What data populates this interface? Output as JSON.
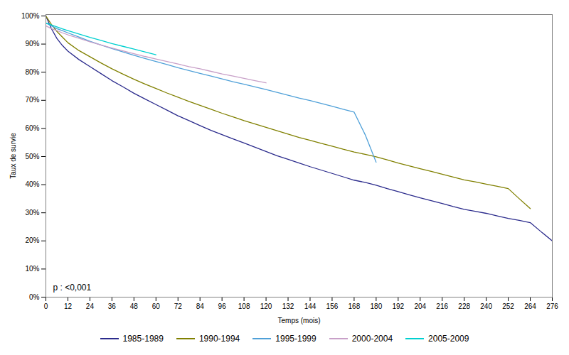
{
  "chart_data": {
    "type": "line",
    "xlabel": "Temps (mois)",
    "ylabel": "Taux de survie",
    "annotations": [
      "p : <0,001"
    ],
    "xlim": [
      0,
      276
    ],
    "ylim": [
      0,
      1.005
    ],
    "xticks": [
      0,
      12,
      24,
      36,
      48,
      60,
      72,
      84,
      96,
      108,
      120,
      132,
      144,
      156,
      168,
      180,
      192,
      204,
      216,
      228,
      240,
      252,
      264,
      276
    ],
    "yticks": [
      {
        "value": 0.0,
        "label": "0%"
      },
      {
        "value": 0.1,
        "label": "10%"
      },
      {
        "value": 0.2,
        "label": "20%"
      },
      {
        "value": 0.3,
        "label": "30%"
      },
      {
        "value": 0.4,
        "label": "40%"
      },
      {
        "value": 0.5,
        "label": "50%"
      },
      {
        "value": 0.6,
        "label": "60%"
      },
      {
        "value": 0.7,
        "label": "70%"
      },
      {
        "value": 0.8,
        "label": "80%"
      },
      {
        "value": 0.9,
        "label": "90%"
      },
      {
        "value": 1.0,
        "label": "100%"
      }
    ],
    "grid": false,
    "legend": "bottom",
    "series": [
      {
        "name": "1985-1989",
        "color": "#2B2B8C",
        "x": [
          0,
          3,
          6,
          9,
          12,
          18,
          24,
          30,
          36,
          42,
          48,
          54,
          60,
          66,
          72,
          78,
          84,
          90,
          96,
          102,
          108,
          114,
          120,
          126,
          132,
          138,
          144,
          150,
          156,
          162,
          168,
          174,
          180,
          186,
          192,
          198,
          204,
          210,
          216,
          222,
          228,
          234,
          240,
          246,
          252,
          258,
          264,
          270,
          276
        ],
        "values": [
          1.0,
          0.955,
          0.92,
          0.895,
          0.875,
          0.845,
          0.82,
          0.795,
          0.77,
          0.748,
          0.725,
          0.705,
          0.685,
          0.665,
          0.645,
          0.628,
          0.61,
          0.593,
          0.578,
          0.563,
          0.548,
          0.533,
          0.518,
          0.503,
          0.49,
          0.477,
          0.464,
          0.452,
          0.44,
          0.428,
          0.416,
          0.408,
          0.398,
          0.386,
          0.375,
          0.364,
          0.353,
          0.343,
          0.333,
          0.322,
          0.312,
          0.305,
          0.298,
          0.289,
          0.28,
          0.273,
          0.265,
          0.232,
          0.2
        ]
      },
      {
        "name": "1990-1994",
        "color": "#808000",
        "x": [
          0,
          3,
          6,
          9,
          12,
          18,
          24,
          30,
          36,
          42,
          48,
          54,
          60,
          66,
          72,
          78,
          84,
          90,
          96,
          102,
          108,
          114,
          120,
          126,
          132,
          138,
          144,
          150,
          156,
          162,
          168,
          174,
          180,
          186,
          192,
          198,
          204,
          210,
          216,
          222,
          228,
          234,
          240,
          246,
          252,
          258,
          264
        ],
        "values": [
          1.0,
          0.97,
          0.945,
          0.925,
          0.905,
          0.877,
          0.855,
          0.833,
          0.812,
          0.793,
          0.775,
          0.758,
          0.742,
          0.726,
          0.711,
          0.696,
          0.682,
          0.668,
          0.654,
          0.641,
          0.628,
          0.616,
          0.604,
          0.592,
          0.58,
          0.568,
          0.558,
          0.547,
          0.537,
          0.526,
          0.516,
          0.508,
          0.499,
          0.488,
          0.477,
          0.467,
          0.457,
          0.447,
          0.437,
          0.427,
          0.417,
          0.41,
          0.402,
          0.394,
          0.386,
          0.35,
          0.315
        ]
      },
      {
        "name": "1995-1999",
        "color": "#4FA0D8",
        "x": [
          0,
          3,
          6,
          9,
          12,
          18,
          24,
          30,
          36,
          42,
          48,
          54,
          60,
          66,
          72,
          78,
          84,
          90,
          96,
          102,
          108,
          114,
          120,
          126,
          132,
          138,
          144,
          150,
          156,
          162,
          168,
          174,
          180
        ],
        "values": [
          0.975,
          0.965,
          0.955,
          0.948,
          0.94,
          0.925,
          0.91,
          0.897,
          0.884,
          0.872,
          0.86,
          0.849,
          0.838,
          0.827,
          0.816,
          0.806,
          0.796,
          0.786,
          0.776,
          0.766,
          0.757,
          0.748,
          0.738,
          0.728,
          0.718,
          0.708,
          0.699,
          0.689,
          0.679,
          0.668,
          0.658,
          0.578,
          0.48
        ]
      },
      {
        "name": "2000-2004",
        "color": "#C8A0C8",
        "x": [
          0,
          3,
          6,
          9,
          12,
          18,
          24,
          30,
          36,
          42,
          48,
          54,
          60,
          66,
          72,
          78,
          84,
          90,
          96,
          102,
          108,
          114,
          120
        ],
        "values": [
          0.965,
          0.955,
          0.948,
          0.94,
          0.933,
          0.921,
          0.908,
          0.897,
          0.886,
          0.876,
          0.866,
          0.856,
          0.847,
          0.838,
          0.829,
          0.82,
          0.812,
          0.803,
          0.794,
          0.786,
          0.778,
          0.77,
          0.762
        ]
      },
      {
        "name": "2005-2009",
        "color": "#00D0D0",
        "x": [
          0,
          3,
          6,
          9,
          12,
          18,
          24,
          30,
          36,
          42,
          48,
          54,
          60
        ],
        "values": [
          0.975,
          0.968,
          0.961,
          0.954,
          0.948,
          0.936,
          0.924,
          0.913,
          0.902,
          0.892,
          0.882,
          0.872,
          0.862
        ]
      }
    ]
  }
}
